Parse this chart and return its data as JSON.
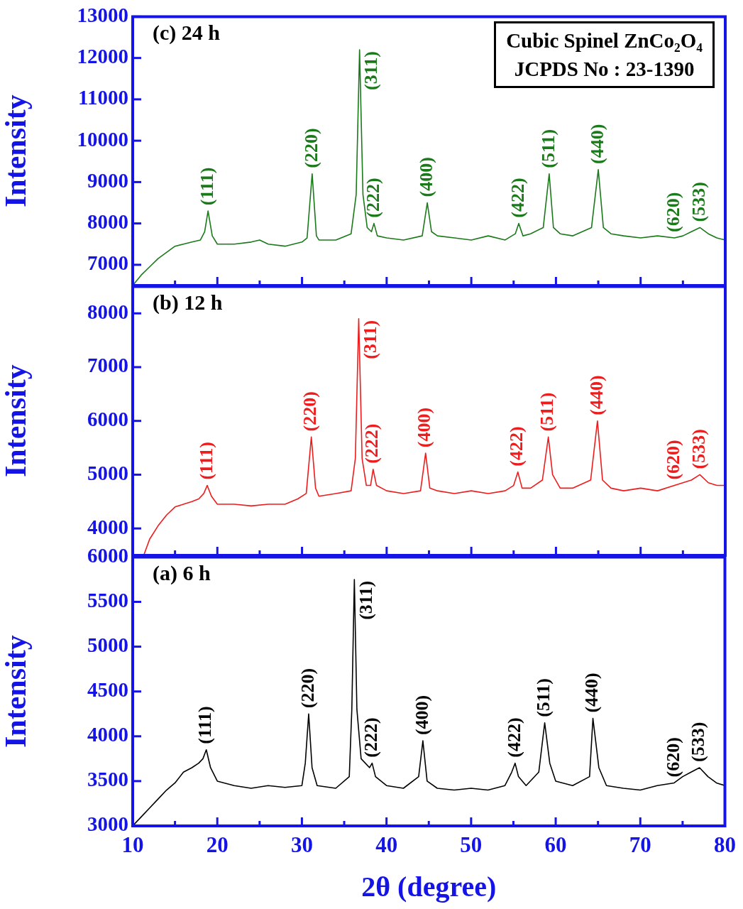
{
  "chart_data": [
    {
      "type": "line",
      "ylabel": "Intensity",
      "tick_labels": "y",
      "xlim": [
        10,
        80
      ],
      "ylim": [
        6500,
        13000
      ],
      "xticks": [
        10,
        {
          "value": 15,
          "label": null
        },
        20,
        {
          "value": 25,
          "label": null
        },
        30,
        {
          "value": 35,
          "label": null
        },
        40,
        {
          "value": 45,
          "label": null
        },
        50,
        {
          "value": 55,
          "label": null
        },
        60,
        {
          "value": 65,
          "label": null
        },
        70,
        {
          "value": 75,
          "label": null
        },
        80
      ],
      "yticks": [
        7000,
        8000,
        9000,
        10000,
        11000,
        12000,
        13000
      ],
      "series": [
        {
          "color": "#1a7a1a",
          "x": [
            10,
            11,
            12,
            13,
            14,
            15,
            16,
            17,
            18,
            18.5,
            18.9,
            19.4,
            20,
            22,
            24,
            25,
            26,
            28,
            30,
            30.6,
            31.2,
            31.7,
            32,
            34,
            35.8,
            36.4,
            36.8,
            37.2,
            37.7,
            38.2,
            38.5,
            38.9,
            40,
            42,
            44.2,
            44.8,
            45.3,
            46,
            48,
            50,
            52,
            54,
            55.2,
            55.6,
            56.1,
            57,
            58.5,
            59.2,
            59.7,
            60.5,
            62,
            64.2,
            65,
            65.6,
            66.5,
            68,
            70,
            72,
            74,
            75,
            76,
            77,
            78,
            79,
            80
          ],
          "values": [
            6500,
            6750,
            6950,
            7150,
            7300,
            7450,
            7500,
            7550,
            7600,
            7800,
            8300,
            7700,
            7500,
            7500,
            7550,
            7600,
            7500,
            7450,
            7550,
            7650,
            9200,
            7700,
            7600,
            7600,
            7750,
            8700,
            12200,
            8700,
            7900,
            7800,
            8000,
            7700,
            7650,
            7600,
            7700,
            8500,
            7800,
            7700,
            7650,
            7600,
            7700,
            7600,
            7750,
            8000,
            7700,
            7750,
            7900,
            9200,
            7900,
            7750,
            7700,
            7900,
            9300,
            7900,
            7750,
            7700,
            7650,
            7700,
            7650,
            7700,
            7800,
            7900,
            7750,
            7650,
            7600
          ]
        }
      ],
      "annotations": [
        "(c) 24 h",
        "Cubic Spinel ZnCo₂O₄",
        "JCPDS No : 23-1390",
        {
          "text": "(111)",
          "x": 18.9,
          "y": 8300
        },
        {
          "text": "(220)",
          "x": 31.2,
          "y": 9200
        },
        {
          "text": "(311)",
          "x": 36.8,
          "y": 12200
        },
        {
          "text": "(222)",
          "x": 38.5,
          "y": 8000
        },
        {
          "text": "(400)",
          "x": 44.8,
          "y": 8500
        },
        {
          "text": "(422)",
          "x": 55.6,
          "y": 8000
        },
        {
          "text": "(511)",
          "x": 59.2,
          "y": 9200
        },
        {
          "text": "(440)",
          "x": 65,
          "y": 9300
        },
        {
          "text": "(620)",
          "x": 74,
          "y": 7650
        },
        {
          "text": "(533)",
          "x": 77,
          "y": 7900
        }
      ]
    },
    {
      "type": "line",
      "ylabel": "Intensity",
      "tick_labels": "y",
      "xlim": [
        10,
        80
      ],
      "ylim": [
        3500,
        8500
      ],
      "xticks": [
        10,
        {
          "value": 15,
          "label": null
        },
        20,
        {
          "value": 25,
          "label": null
        },
        30,
        {
          "value": 35,
          "label": null
        },
        40,
        {
          "value": 45,
          "label": null
        },
        50,
        {
          "value": 55,
          "label": null
        },
        60,
        {
          "value": 65,
          "label": null
        },
        70,
        {
          "value": 75,
          "label": null
        },
        80
      ],
      "yticks": [
        4000,
        5000,
        6000,
        7000,
        8000
      ],
      "series": [
        {
          "color": "#ee1c1c",
          "x": [
            11.3,
            12,
            13,
            14,
            15,
            16,
            17,
            17.8,
            18.4,
            18.8,
            19.3,
            20,
            22,
            24,
            26,
            28,
            29.5,
            30.5,
            31.1,
            31.6,
            32,
            34,
            35.8,
            36.3,
            36.7,
            37.1,
            37.6,
            38.1,
            38.4,
            38.8,
            40,
            42,
            44,
            44.6,
            45.1,
            46,
            48,
            50,
            52,
            54,
            55,
            55.5,
            56,
            57,
            58.4,
            59.1,
            59.6,
            60.5,
            62,
            64.1,
            64.9,
            65.5,
            66.5,
            68,
            70,
            72,
            74,
            75,
            76,
            77,
            78,
            79,
            80
          ],
          "values": [
            3500,
            3800,
            4050,
            4250,
            4400,
            4450,
            4500,
            4550,
            4650,
            4800,
            4600,
            4450,
            4450,
            4420,
            4450,
            4450,
            4550,
            4650,
            5700,
            4750,
            4600,
            4650,
            4700,
            5300,
            7900,
            5300,
            4800,
            4800,
            5100,
            4800,
            4700,
            4650,
            4700,
            5400,
            4750,
            4700,
            4650,
            4700,
            4650,
            4700,
            4800,
            5050,
            4750,
            4750,
            4900,
            5700,
            5000,
            4750,
            4750,
            4900,
            6000,
            4900,
            4750,
            4700,
            4750,
            4700,
            4800,
            4850,
            4900,
            5000,
            4850,
            4800,
            4800
          ]
        }
      ],
      "annotations": [
        "(b) 12 h",
        {
          "text": "(111)",
          "x": 18.8,
          "y": 4800
        },
        {
          "text": "(220)",
          "x": 31.1,
          "y": 5700
        },
        {
          "text": "(311)",
          "x": 36.7,
          "y": 7900
        },
        {
          "text": "(222)",
          "x": 38.4,
          "y": 5100
        },
        {
          "text": "(400)",
          "x": 44.6,
          "y": 5400
        },
        {
          "text": "(422)",
          "x": 55.5,
          "y": 5050
        },
        {
          "text": "(511)",
          "x": 59.1,
          "y": 5700
        },
        {
          "text": "(440)",
          "x": 64.9,
          "y": 6000
        },
        {
          "text": "(620)",
          "x": 74,
          "y": 4800
        },
        {
          "text": "(533)",
          "x": 77,
          "y": 5000
        }
      ]
    },
    {
      "type": "line",
      "ylabel": "Intensity",
      "xlabel": "2θ (degree)",
      "xlim": [
        10,
        80
      ],
      "ylim": [
        3000,
        6000
      ],
      "xticks": [
        10,
        {
          "value": 15,
          "label": null
        },
        20,
        {
          "value": 25,
          "label": null
        },
        30,
        {
          "value": 35,
          "label": null
        },
        40,
        {
          "value": 45,
          "label": null
        },
        50,
        {
          "value": 55,
          "label": null
        },
        60,
        {
          "value": 65,
          "label": null
        },
        70,
        {
          "value": 75,
          "label": null
        },
        80
      ],
      "yticks": [
        3000,
        3500,
        4000,
        4500,
        5000,
        5500,
        6000
      ],
      "series": [
        {
          "color": "#000000",
          "x": [
            10,
            11,
            12,
            13,
            14,
            15,
            16,
            17,
            17.8,
            18.3,
            18.7,
            19.2,
            20,
            22,
            24,
            26,
            28,
            30,
            30.4,
            30.8,
            31.2,
            31.8,
            34,
            35.6,
            35.9,
            36.2,
            36.5,
            37.0,
            38,
            38.3,
            38.7,
            40,
            42,
            43.8,
            44.3,
            44.8,
            46,
            48,
            50,
            52,
            54,
            54.8,
            55.2,
            55.6,
            56.5,
            58,
            58.7,
            59.3,
            60,
            62,
            64,
            64.4,
            65.1,
            66,
            68,
            70,
            72,
            74,
            75,
            76,
            77,
            78,
            79,
            80
          ],
          "values": [
            3000,
            3100,
            3200,
            3300,
            3400,
            3480,
            3600,
            3650,
            3700,
            3750,
            3850,
            3650,
            3500,
            3450,
            3420,
            3450,
            3430,
            3450,
            3700,
            4250,
            3650,
            3450,
            3420,
            3550,
            4300,
            5750,
            4300,
            3750,
            3650,
            3700,
            3550,
            3450,
            3420,
            3550,
            3950,
            3500,
            3420,
            3400,
            3420,
            3400,
            3450,
            3600,
            3700,
            3550,
            3450,
            3600,
            4150,
            3700,
            3500,
            3450,
            3550,
            4200,
            3650,
            3450,
            3420,
            3400,
            3450,
            3480,
            3550,
            3600,
            3650,
            3550,
            3480,
            3450
          ]
        }
      ],
      "annotations": [
        "(a) 6 h",
        {
          "text": "(111)",
          "x": 18.7,
          "y": 3850
        },
        {
          "text": "(220)",
          "x": 30.8,
          "y": 4250
        },
        {
          "text": "(311)",
          "x": 36.2,
          "y": 5750
        },
        {
          "text": "(222)",
          "x": 38.3,
          "y": 3700
        },
        {
          "text": "(400)",
          "x": 44.3,
          "y": 3950
        },
        {
          "text": "(422)",
          "x": 55.2,
          "y": 3700
        },
        {
          "text": "(511)",
          "x": 58.7,
          "y": 4150
        },
        {
          "text": "(440)",
          "x": 64.4,
          "y": 4200
        },
        {
          "text": "(620)",
          "x": 74,
          "y": 3480
        },
        {
          "text": "(533)",
          "x": 77,
          "y": 3650
        }
      ]
    }
  ]
}
